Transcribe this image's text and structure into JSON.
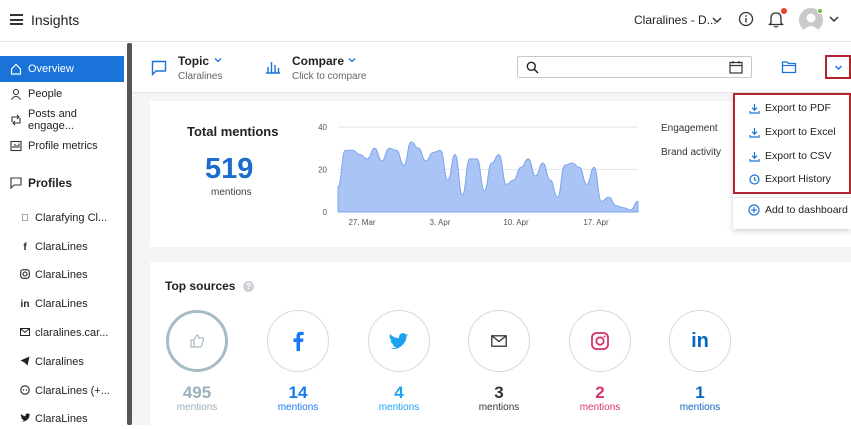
{
  "header": {
    "app_title": "Insights",
    "brand": "Claralines - D..."
  },
  "sidebar": {
    "items": [
      {
        "label": "Overview",
        "icon": "home-icon"
      },
      {
        "label": "People",
        "icon": "person-icon"
      },
      {
        "label": "Posts and engage...",
        "icon": "retweet-icon"
      },
      {
        "label": "Profile metrics",
        "icon": "metrics-icon"
      }
    ],
    "profiles_heading": "Profiles",
    "profiles": [
      {
        "label": "Clarafying Cl...",
        "icon": "apple-icon"
      },
      {
        "label": "ClaraLines",
        "icon": "facebook-icon"
      },
      {
        "label": "ClaraLines",
        "icon": "instagram-icon"
      },
      {
        "label": "ClaraLines",
        "icon": "linkedin-icon"
      },
      {
        "label": "claralines.car...",
        "icon": "email-icon"
      },
      {
        "label": "Claralines",
        "icon": "telegram-icon"
      },
      {
        "label": "ClaraLines (+...",
        "icon": "whatsapp-icon"
      },
      {
        "label": "ClaraLines",
        "icon": "twitter-icon"
      }
    ]
  },
  "toolbar": {
    "topic_label": "Topic",
    "topic_value": "Claralines",
    "compare_label": "Compare",
    "compare_value": "Click to compare",
    "search_placeholder": ""
  },
  "summary": {
    "title": "Total mentions",
    "count": "519",
    "count_label": "mentions"
  },
  "chart_data": {
    "type": "area",
    "x_ticks": [
      "27. Mar",
      "3. Apr",
      "10. Apr",
      "17. Apr"
    ],
    "y_ticks": [
      "40",
      "20",
      "0"
    ],
    "ylim": [
      0,
      40
    ],
    "values": [
      12,
      29,
      29,
      27,
      25,
      30,
      24,
      30,
      29,
      22,
      33,
      30,
      24,
      28,
      29,
      15,
      27,
      8,
      25,
      25,
      10,
      23,
      27,
      13,
      15,
      21,
      25,
      17,
      23,
      15,
      7,
      22,
      23,
      21,
      13,
      21,
      5,
      7,
      3,
      2,
      1,
      5
    ],
    "color": "#a9c4f5",
    "grid": true
  },
  "legend": {
    "engagement": "Engagement",
    "brand_activity": "Brand activity"
  },
  "sources": {
    "title": "Top sources",
    "items": [
      {
        "count": "495",
        "label": "mentions",
        "color": "#9ab0bc",
        "icon": "thumbs-up-icon"
      },
      {
        "count": "14",
        "label": "mentions",
        "color": "#1877f2",
        "icon": "facebook-icon"
      },
      {
        "count": "4",
        "label": "mentions",
        "color": "#1da1f2",
        "icon": "twitter-icon"
      },
      {
        "count": "3",
        "label": "mentions",
        "color": "#333333",
        "icon": "email-icon"
      },
      {
        "count": "2",
        "label": "mentions",
        "color": "#d6336c",
        "icon": "instagram-icon"
      },
      {
        "count": "1",
        "label": "mentions",
        "color": "#0a66c2",
        "icon": "linkedin-icon"
      }
    ]
  },
  "export_menu": {
    "items": [
      {
        "label": "Export to PDF",
        "icon": "download-icon"
      },
      {
        "label": "Export to Excel",
        "icon": "download-icon"
      },
      {
        "label": "Export to CSV",
        "icon": "download-icon"
      },
      {
        "label": "Export History",
        "icon": "clock-icon"
      }
    ],
    "add_to_dashboard": "Add to dashboard"
  },
  "colors": {
    "accent": "#1a73d8",
    "highlight_border": "#b3242f"
  }
}
